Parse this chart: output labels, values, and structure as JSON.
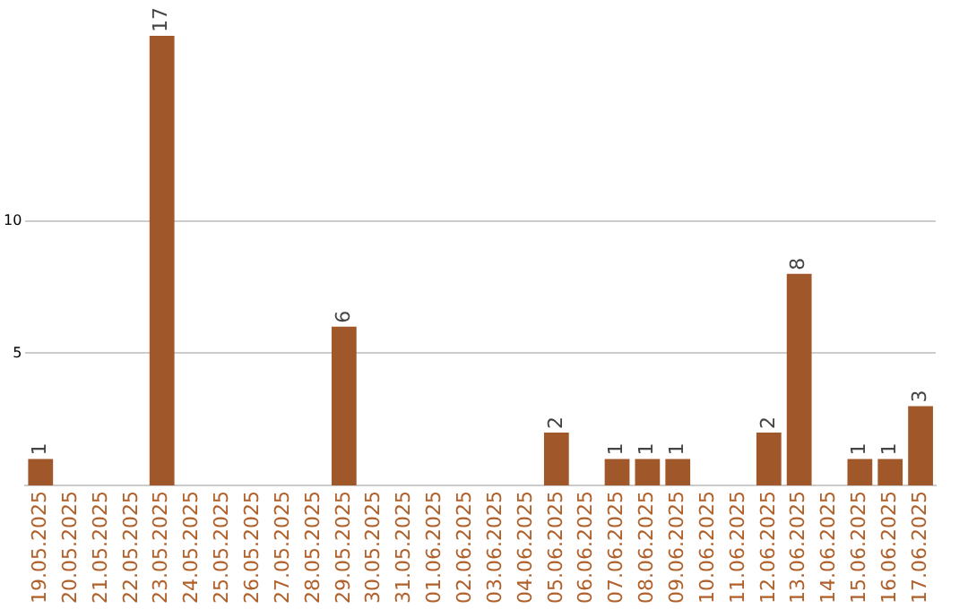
{
  "chart_data": {
    "type": "bar",
    "categories": [
      "19.05.2025",
      "20.05.2025",
      "21.05.2025",
      "22.05.2025",
      "23.05.2025",
      "24.05.2025",
      "25.05.2025",
      "26.05.2025",
      "27.05.2025",
      "28.05.2025",
      "29.05.2025",
      "30.05.2025",
      "31.05.2025",
      "01.06.2025",
      "02.06.2025",
      "03.06.2025",
      "04.06.2025",
      "05.06.2025",
      "06.06.2025",
      "07.06.2025",
      "08.06.2025",
      "09.06.2025",
      "10.06.2025",
      "11.06.2025",
      "12.06.2025",
      "13.06.2025",
      "14.06.2025",
      "15.06.2025",
      "16.06.2025",
      "17.06.2025"
    ],
    "values": [
      1,
      0,
      0,
      0,
      17,
      0,
      0,
      0,
      0,
      0,
      6,
      0,
      0,
      0,
      0,
      0,
      0,
      2,
      0,
      1,
      1,
      1,
      0,
      0,
      2,
      8,
      0,
      1,
      1,
      3
    ],
    "value_labels": [
      "1",
      null,
      null,
      null,
      "17",
      null,
      null,
      null,
      null,
      null,
      "6",
      null,
      null,
      null,
      null,
      null,
      null,
      "2",
      null,
      "1",
      "1",
      "1",
      null,
      null,
      "2",
      "8",
      null,
      "1",
      "1",
      "3"
    ],
    "color": "#a0582a",
    "ylim": [
      0,
      17
    ],
    "yticks": [
      5,
      10
    ],
    "grid": "y",
    "legend": false
  }
}
